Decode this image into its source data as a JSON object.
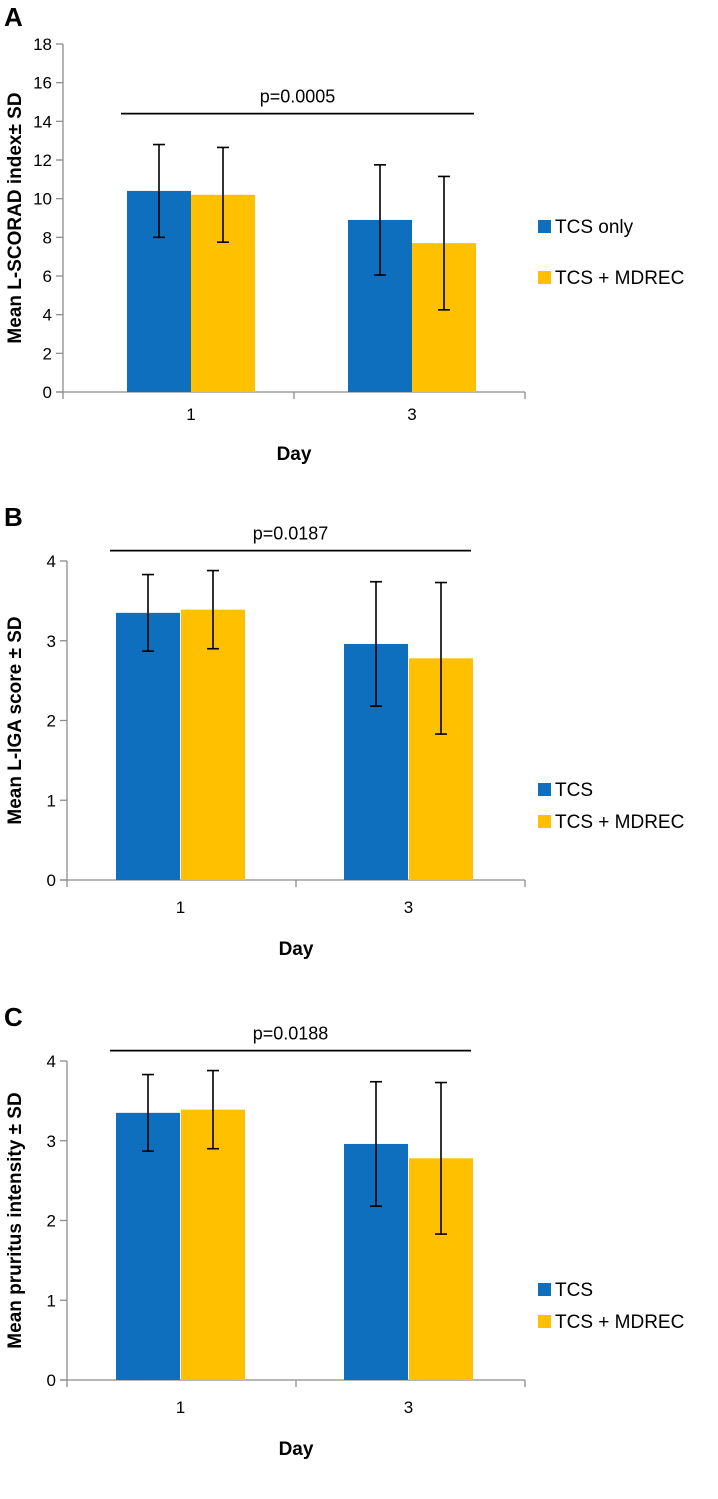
{
  "chart_data": [
    {
      "panel_letter": "A",
      "type": "bar",
      "categories": [
        "1",
        "3"
      ],
      "series": [
        {
          "name": "TCS only",
          "color": "#0f6fbf",
          "values": [
            10.4,
            8.9
          ],
          "sd": [
            2.4,
            2.85
          ]
        },
        {
          "name": "TCS + MDREC",
          "color": "#ffc000",
          "values": [
            10.2,
            7.7
          ],
          "sd": [
            2.45,
            3.45
          ]
        }
      ],
      "xlabel": "Day",
      "ylabel": "Mean L-SCORAD index± SD",
      "ylim": [
        0,
        18
      ],
      "yticks": [
        0,
        2,
        4,
        6,
        8,
        10,
        12,
        14,
        16,
        18
      ],
      "annotation": {
        "text": "p=0.0005",
        "line_y": 14.4
      },
      "grid": false,
      "legend_position": "right"
    },
    {
      "panel_letter": "B",
      "type": "bar",
      "categories": [
        "1",
        "3"
      ],
      "series": [
        {
          "name": "TCS",
          "color": "#0f6fbf",
          "values": [
            3.35,
            2.96
          ],
          "sd": [
            0.48,
            0.78
          ]
        },
        {
          "name": "TCS + MDREC",
          "color": "#ffc000",
          "values": [
            3.39,
            2.78
          ],
          "sd": [
            0.49,
            0.95
          ]
        }
      ],
      "xlabel": "Day",
      "ylabel": "Mean L-IGA score ± SD",
      "ylim": [
        0,
        4
      ],
      "yticks": [
        0,
        1,
        2,
        3,
        4
      ],
      "annotation": {
        "text": "p=0.0187",
        "line_y": 4.13
      },
      "grid": false,
      "legend_position": "right"
    },
    {
      "panel_letter": "C",
      "type": "bar",
      "categories": [
        "1",
        "3"
      ],
      "series": [
        {
          "name": "TCS",
          "color": "#0f6fbf",
          "values": [
            3.35,
            2.96
          ],
          "sd": [
            0.48,
            0.78
          ]
        },
        {
          "name": "TCS + MDREC",
          "color": "#ffc000",
          "values": [
            3.39,
            2.78
          ],
          "sd": [
            0.49,
            0.95
          ]
        }
      ],
      "xlabel": "Day",
      "ylabel": "Mean pruritus intensity ± SD",
      "ylim": [
        0,
        4
      ],
      "yticks": [
        0,
        1,
        2,
        3,
        4
      ],
      "annotation": {
        "text": "p=0.0188",
        "line_y": 4.13
      },
      "grid": false,
      "legend_position": "right"
    }
  ]
}
